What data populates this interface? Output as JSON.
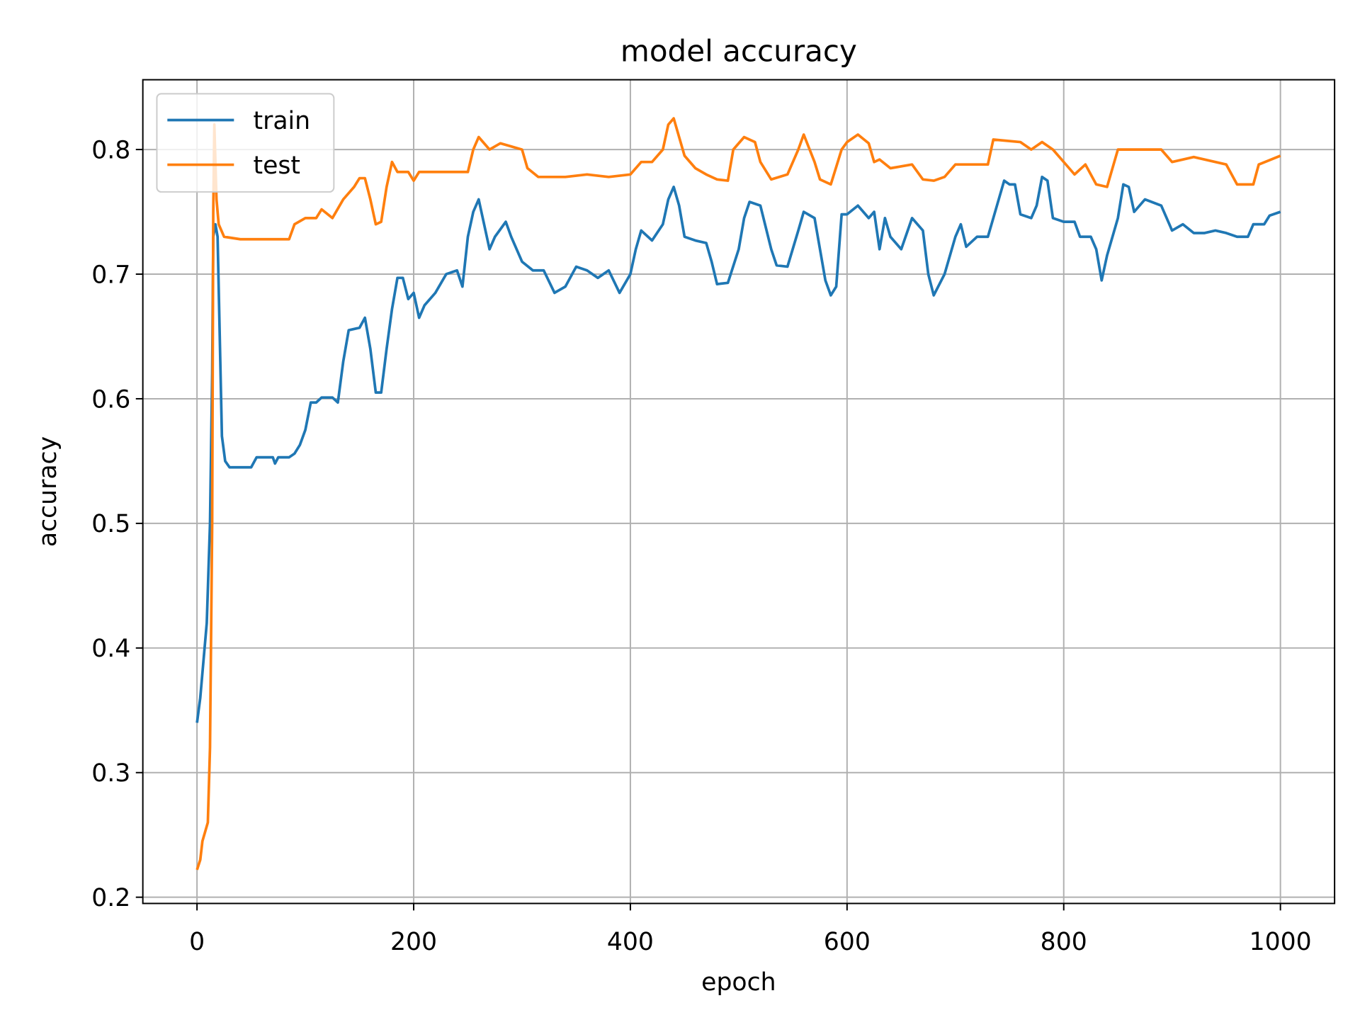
{
  "chart_data": {
    "type": "line",
    "title": "model accuracy",
    "x_label": "epoch",
    "y_label": "accuracy",
    "xlim": [
      -50,
      1050
    ],
    "ylim": [
      0.195,
      0.856
    ],
    "xticks": [
      0,
      200,
      400,
      600,
      800,
      1000
    ],
    "yticks": [
      0.2,
      0.3,
      0.4,
      0.5,
      0.6,
      0.7,
      0.8
    ],
    "grid": true,
    "legend": "upper left",
    "series": [
      {
        "name": "train",
        "color": "#1f77b4",
        "x": [
          0,
          3,
          6,
          9,
          12,
          14,
          15,
          17,
          19,
          21,
          23,
          26,
          30,
          40,
          50,
          55,
          60,
          70,
          72,
          75,
          85,
          90,
          95,
          100,
          105,
          110,
          115,
          125,
          130,
          135,
          140,
          150,
          155,
          160,
          165,
          170,
          175,
          180,
          185,
          190,
          195,
          200,
          205,
          210,
          220,
          230,
          240,
          245,
          250,
          255,
          260,
          265,
          270,
          275,
          285,
          290,
          300,
          310,
          320,
          330,
          340,
          350,
          360,
          370,
          380,
          390,
          400,
          405,
          410,
          420,
          430,
          435,
          440,
          445,
          450,
          460,
          470,
          475,
          480,
          490,
          500,
          505,
          510,
          520,
          530,
          535,
          545,
          555,
          560,
          570,
          575,
          580,
          585,
          590,
          595,
          600,
          610,
          620,
          625,
          630,
          635,
          640,
          650,
          660,
          670,
          675,
          680,
          690,
          700,
          705,
          710,
          720,
          730,
          735,
          740,
          745,
          750,
          755,
          760,
          770,
          775,
          780,
          785,
          790,
          800,
          810,
          815,
          825,
          830,
          835,
          840,
          845,
          850,
          855,
          860,
          865,
          875,
          890,
          900,
          910,
          920,
          930,
          940,
          950,
          960,
          970,
          975,
          985,
          990,
          1000
        ],
        "values": [
          0.34,
          0.36,
          0.39,
          0.42,
          0.5,
          0.62,
          0.73,
          0.74,
          0.73,
          0.65,
          0.57,
          0.55,
          0.545,
          0.545,
          0.545,
          0.553,
          0.553,
          0.553,
          0.548,
          0.553,
          0.553,
          0.556,
          0.563,
          0.575,
          0.597,
          0.597,
          0.601,
          0.601,
          0.597,
          0.63,
          0.655,
          0.657,
          0.665,
          0.64,
          0.605,
          0.605,
          0.64,
          0.672,
          0.697,
          0.697,
          0.68,
          0.685,
          0.665,
          0.675,
          0.685,
          0.7,
          0.703,
          0.69,
          0.73,
          0.75,
          0.76,
          0.74,
          0.72,
          0.73,
          0.742,
          0.73,
          0.71,
          0.703,
          0.703,
          0.685,
          0.69,
          0.706,
          0.703,
          0.697,
          0.703,
          0.685,
          0.7,
          0.72,
          0.735,
          0.727,
          0.74,
          0.76,
          0.77,
          0.755,
          0.73,
          0.727,
          0.725,
          0.71,
          0.692,
          0.693,
          0.72,
          0.745,
          0.758,
          0.755,
          0.72,
          0.707,
          0.706,
          0.735,
          0.75,
          0.745,
          0.72,
          0.695,
          0.683,
          0.69,
          0.748,
          0.748,
          0.755,
          0.745,
          0.75,
          0.72,
          0.745,
          0.73,
          0.72,
          0.745,
          0.735,
          0.7,
          0.683,
          0.7,
          0.73,
          0.74,
          0.722,
          0.73,
          0.73,
          0.745,
          0.76,
          0.775,
          0.772,
          0.772,
          0.748,
          0.745,
          0.755,
          0.778,
          0.775,
          0.745,
          0.742,
          0.742,
          0.73,
          0.73,
          0.72,
          0.695,
          0.715,
          0.73,
          0.745,
          0.772,
          0.77,
          0.75,
          0.76,
          0.755,
          0.735,
          0.74,
          0.733,
          0.733,
          0.735,
          0.733,
          0.73,
          0.73,
          0.74,
          0.74,
          0.747,
          0.75
        ]
      },
      {
        "name": "test",
        "color": "#ff7f0e",
        "x": [
          0,
          3,
          5,
          10,
          12,
          14,
          15,
          16,
          18,
          20,
          25,
          40,
          60,
          85,
          90,
          100,
          110,
          115,
          125,
          135,
          145,
          150,
          155,
          160,
          165,
          170,
          175,
          180,
          185,
          195,
          200,
          205,
          220,
          250,
          255,
          260,
          270,
          280,
          300,
          305,
          315,
          340,
          360,
          380,
          400,
          410,
          420,
          430,
          435,
          440,
          445,
          450,
          460,
          470,
          480,
          490,
          495,
          505,
          515,
          520,
          530,
          545,
          555,
          560,
          570,
          575,
          585,
          595,
          600,
          610,
          620,
          625,
          630,
          640,
          660,
          670,
          680,
          690,
          700,
          730,
          735,
          760,
          770,
          780,
          790,
          800,
          810,
          820,
          830,
          840,
          850,
          860,
          870,
          880,
          890,
          900,
          920,
          940,
          950,
          960,
          975,
          980,
          1000
        ],
        "values": [
          0.222,
          0.23,
          0.245,
          0.26,
          0.32,
          0.5,
          0.75,
          0.82,
          0.76,
          0.74,
          0.73,
          0.728,
          0.728,
          0.728,
          0.74,
          0.745,
          0.745,
          0.752,
          0.745,
          0.76,
          0.77,
          0.777,
          0.777,
          0.76,
          0.74,
          0.742,
          0.77,
          0.79,
          0.782,
          0.782,
          0.775,
          0.782,
          0.782,
          0.782,
          0.8,
          0.81,
          0.8,
          0.805,
          0.8,
          0.785,
          0.778,
          0.778,
          0.78,
          0.778,
          0.78,
          0.79,
          0.79,
          0.8,
          0.82,
          0.825,
          0.81,
          0.795,
          0.785,
          0.78,
          0.776,
          0.775,
          0.8,
          0.81,
          0.806,
          0.79,
          0.776,
          0.78,
          0.8,
          0.812,
          0.79,
          0.776,
          0.772,
          0.8,
          0.806,
          0.812,
          0.805,
          0.79,
          0.792,
          0.785,
          0.788,
          0.776,
          0.775,
          0.778,
          0.788,
          0.788,
          0.808,
          0.806,
          0.8,
          0.806,
          0.8,
          0.79,
          0.78,
          0.788,
          0.772,
          0.77,
          0.8,
          0.8,
          0.8,
          0.8,
          0.8,
          0.79,
          0.794,
          0.79,
          0.788,
          0.772,
          0.772,
          0.788,
          0.795
        ]
      }
    ]
  }
}
